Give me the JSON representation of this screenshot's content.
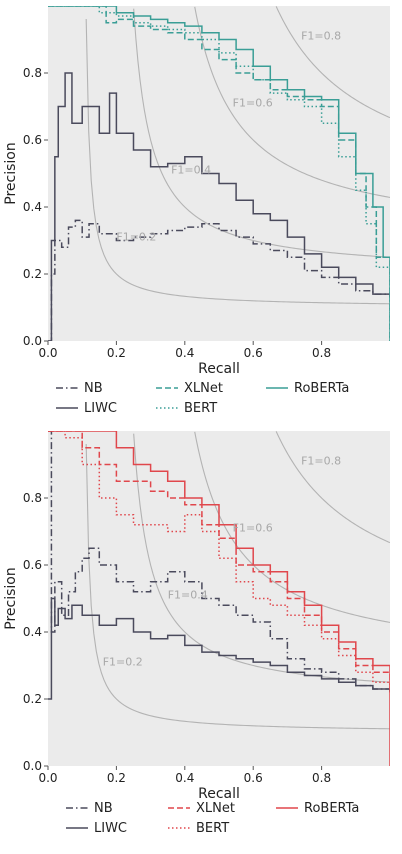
{
  "chart_data": [
    {
      "type": "line",
      "title": "",
      "xlabel": "Recall",
      "ylabel": "Precision",
      "xlim": [
        0,
        1
      ],
      "ylim": [
        0,
        1
      ],
      "x_ticks": [
        "0.0",
        "0.2",
        "0.4",
        "0.6",
        "0.8"
      ],
      "y_ticks": [
        "0.0",
        "0.2",
        "0.4",
        "0.6",
        "0.8"
      ],
      "grid": false,
      "background": "#ebebeb",
      "legend_placement": "below",
      "iso_f1": [
        {
          "value": 0.2,
          "label": "F1=0.2"
        },
        {
          "value": 0.4,
          "label": "F1=0.4"
        },
        {
          "value": 0.6,
          "label": "F1=0.6"
        },
        {
          "value": 0.8,
          "label": "F1=0.8"
        }
      ],
      "series": [
        {
          "name": "NB",
          "color": "#4a4a5c",
          "dash": "dashdot",
          "x": [
            0.0,
            0.01,
            0.02,
            0.04,
            0.06,
            0.08,
            0.1,
            0.12,
            0.15,
            0.2,
            0.25,
            0.3,
            0.35,
            0.4,
            0.45,
            0.5,
            0.55,
            0.6,
            0.65,
            0.7,
            0.75,
            0.8,
            0.85,
            0.9,
            0.95,
            1.0
          ],
          "y": [
            0.0,
            0.2,
            0.3,
            0.28,
            0.34,
            0.36,
            0.31,
            0.35,
            0.32,
            0.3,
            0.31,
            0.32,
            0.33,
            0.34,
            0.35,
            0.33,
            0.31,
            0.29,
            0.27,
            0.25,
            0.21,
            0.19,
            0.17,
            0.15,
            0.14,
            0.13
          ]
        },
        {
          "name": "LIWC",
          "color": "#4a4a5c",
          "dash": "solid",
          "x": [
            0.0,
            0.01,
            0.02,
            0.03,
            0.05,
            0.07,
            0.1,
            0.15,
            0.18,
            0.2,
            0.25,
            0.3,
            0.35,
            0.4,
            0.45,
            0.5,
            0.55,
            0.6,
            0.65,
            0.7,
            0.75,
            0.8,
            0.85,
            0.9,
            0.95,
            1.0
          ],
          "y": [
            0.0,
            0.3,
            0.55,
            0.7,
            0.8,
            0.65,
            0.7,
            0.62,
            0.74,
            0.62,
            0.57,
            0.52,
            0.53,
            0.55,
            0.5,
            0.47,
            0.42,
            0.38,
            0.36,
            0.31,
            0.26,
            0.22,
            0.19,
            0.17,
            0.14,
            0.13
          ]
        },
        {
          "name": "XLNet",
          "color": "#3a9e96",
          "dash": "dashed",
          "x": [
            0.0,
            0.05,
            0.1,
            0.15,
            0.17,
            0.2,
            0.25,
            0.3,
            0.35,
            0.4,
            0.45,
            0.5,
            0.55,
            0.6,
            0.65,
            0.7,
            0.75,
            0.8,
            0.85,
            0.9,
            0.93,
            0.96,
            1.0
          ],
          "y": [
            1.0,
            1.0,
            1.0,
            1.0,
            0.95,
            0.96,
            0.94,
            0.93,
            0.92,
            0.9,
            0.87,
            0.84,
            0.8,
            0.78,
            0.75,
            0.73,
            0.72,
            0.7,
            0.6,
            0.5,
            0.4,
            0.25,
            0.0
          ]
        },
        {
          "name": "BERT",
          "color": "#3a9e96",
          "dash": "dotted",
          "x": [
            0.0,
            0.05,
            0.1,
            0.15,
            0.2,
            0.25,
            0.3,
            0.35,
            0.4,
            0.45,
            0.5,
            0.55,
            0.6,
            0.65,
            0.7,
            0.75,
            0.8,
            0.85,
            0.9,
            0.93,
            0.96,
            1.0
          ],
          "y": [
            1.0,
            1.0,
            1.0,
            0.98,
            0.97,
            0.95,
            0.94,
            0.93,
            0.92,
            0.9,
            0.86,
            0.82,
            0.78,
            0.74,
            0.72,
            0.7,
            0.65,
            0.55,
            0.45,
            0.35,
            0.22,
            0.0
          ]
        },
        {
          "name": "RoBERTa",
          "color": "#3a9e96",
          "dash": "solid",
          "x": [
            0.0,
            0.05,
            0.1,
            0.15,
            0.2,
            0.25,
            0.3,
            0.35,
            0.4,
            0.45,
            0.5,
            0.55,
            0.6,
            0.65,
            0.7,
            0.75,
            0.8,
            0.85,
            0.9,
            0.95,
            0.98,
            1.0
          ],
          "y": [
            1.0,
            1.0,
            1.0,
            1.0,
            0.98,
            0.97,
            0.96,
            0.95,
            0.94,
            0.92,
            0.9,
            0.87,
            0.82,
            0.78,
            0.75,
            0.73,
            0.72,
            0.62,
            0.5,
            0.4,
            0.25,
            0.0
          ]
        }
      ]
    },
    {
      "type": "line",
      "title": "",
      "xlabel": "Recall",
      "ylabel": "Precision",
      "xlim": [
        0,
        1
      ],
      "ylim": [
        0,
        1
      ],
      "x_ticks": [
        "0.0",
        "0.2",
        "0.4",
        "0.6",
        "0.8"
      ],
      "y_ticks": [
        "0.0",
        "0.2",
        "0.4",
        "0.6",
        "0.8"
      ],
      "grid": false,
      "background": "#ebebeb",
      "legend_placement": "below",
      "iso_f1": [
        {
          "value": 0.2,
          "label": "F1=0.2"
        },
        {
          "value": 0.4,
          "label": "F1=0.4"
        },
        {
          "value": 0.6,
          "label": "F1=0.6"
        },
        {
          "value": 0.8,
          "label": "F1=0.8"
        }
      ],
      "series": [
        {
          "name": "NB",
          "color": "#4a4a5c",
          "dash": "dashdot",
          "x": [
            0.0,
            0.01,
            0.02,
            0.04,
            0.06,
            0.08,
            0.1,
            0.12,
            0.15,
            0.2,
            0.25,
            0.3,
            0.35,
            0.4,
            0.45,
            0.5,
            0.55,
            0.6,
            0.65,
            0.7,
            0.75,
            0.8,
            0.85,
            0.9,
            0.95,
            1.0
          ],
          "y": [
            1.0,
            0.4,
            0.55,
            0.45,
            0.52,
            0.58,
            0.62,
            0.65,
            0.6,
            0.55,
            0.52,
            0.55,
            0.58,
            0.55,
            0.5,
            0.48,
            0.45,
            0.43,
            0.38,
            0.32,
            0.29,
            0.28,
            0.26,
            0.24,
            0.23,
            0.22
          ]
        },
        {
          "name": "LIWC",
          "color": "#4a4a5c",
          "dash": "solid",
          "x": [
            0.0,
            0.01,
            0.02,
            0.03,
            0.05,
            0.07,
            0.1,
            0.15,
            0.2,
            0.25,
            0.3,
            0.35,
            0.4,
            0.45,
            0.5,
            0.55,
            0.6,
            0.65,
            0.7,
            0.75,
            0.8,
            0.85,
            0.9,
            0.95,
            1.0
          ],
          "y": [
            0.2,
            0.5,
            0.42,
            0.47,
            0.44,
            0.48,
            0.45,
            0.42,
            0.44,
            0.4,
            0.38,
            0.39,
            0.36,
            0.34,
            0.33,
            0.32,
            0.31,
            0.3,
            0.28,
            0.27,
            0.26,
            0.25,
            0.24,
            0.23,
            0.22
          ]
        },
        {
          "name": "XLNet",
          "color": "#e0474c",
          "dash": "dashed",
          "x": [
            0.0,
            0.05,
            0.1,
            0.15,
            0.2,
            0.25,
            0.3,
            0.35,
            0.4,
            0.45,
            0.5,
            0.55,
            0.6,
            0.65,
            0.7,
            0.75,
            0.8,
            0.85,
            0.9,
            0.95,
            1.0
          ],
          "y": [
            1.0,
            1.0,
            0.95,
            0.9,
            0.85,
            0.85,
            0.82,
            0.8,
            0.78,
            0.72,
            0.68,
            0.6,
            0.58,
            0.55,
            0.5,
            0.45,
            0.4,
            0.35,
            0.3,
            0.28,
            0.22
          ]
        },
        {
          "name": "BERT",
          "color": "#e0474c",
          "dash": "dotted",
          "x": [
            0.0,
            0.05,
            0.1,
            0.15,
            0.2,
            0.25,
            0.3,
            0.35,
            0.4,
            0.45,
            0.5,
            0.55,
            0.6,
            0.65,
            0.7,
            0.75,
            0.8,
            0.85,
            0.9,
            0.95,
            1.0
          ],
          "y": [
            1.0,
            0.98,
            0.9,
            0.8,
            0.75,
            0.72,
            0.72,
            0.7,
            0.75,
            0.7,
            0.62,
            0.55,
            0.5,
            0.48,
            0.45,
            0.42,
            0.38,
            0.33,
            0.28,
            0.25,
            0.22
          ]
        },
        {
          "name": "RoBERTa",
          "color": "#e0474c",
          "dash": "solid",
          "x": [
            0.0,
            0.05,
            0.1,
            0.15,
            0.2,
            0.25,
            0.3,
            0.35,
            0.4,
            0.45,
            0.5,
            0.55,
            0.6,
            0.65,
            0.7,
            0.75,
            0.8,
            0.85,
            0.9,
            0.95,
            1.0
          ],
          "y": [
            1.0,
            1.0,
            1.0,
            1.0,
            0.95,
            0.9,
            0.88,
            0.85,
            0.8,
            0.78,
            0.72,
            0.65,
            0.6,
            0.58,
            0.52,
            0.48,
            0.42,
            0.37,
            0.32,
            0.3,
            0.0
          ]
        }
      ]
    }
  ]
}
